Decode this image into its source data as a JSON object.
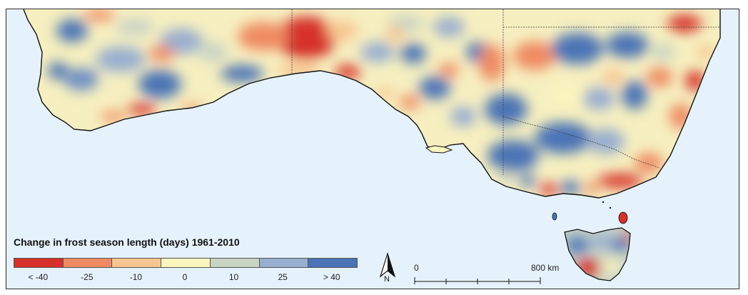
{
  "legend": {
    "title": "Change in frost season length (days) 1961-2010",
    "classes": [
      "#d7302a",
      "#ef8a62",
      "#f8c590",
      "#fbf6be",
      "#c9d4c5",
      "#98afd0",
      "#4b74b6"
    ],
    "labels": [
      "< -40",
      "-25",
      "-10",
      "0",
      "10",
      "25",
      "> 40"
    ]
  },
  "north_arrow": {
    "label": "N"
  },
  "scale_bar": {
    "start_label": "0",
    "end_label": "800 km"
  },
  "colors": {
    "ocean": "#e6f2fb",
    "coast": "#111111",
    "state_border": "#3a3a3a"
  }
}
